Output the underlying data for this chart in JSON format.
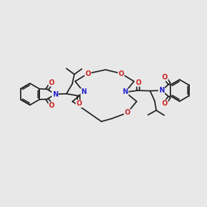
{
  "bg_color": "#e8e8e8",
  "bond_color": "#222222",
  "N_color": "#2222cc",
  "O_color": "#cc2222",
  "bond_width": 1.3,
  "font_size_atom": 7.0,
  "figsize": [
    3.0,
    3.0
  ],
  "dpi": 100,
  "xlim": [
    0,
    10
  ],
  "ylim": [
    0,
    10
  ]
}
